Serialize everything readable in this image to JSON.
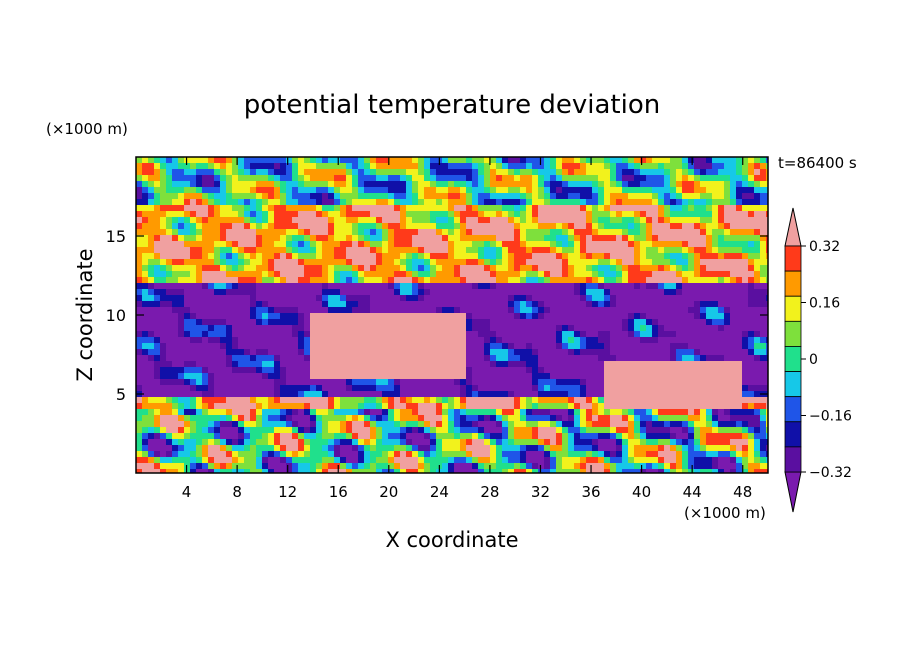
{
  "chart_data": {
    "type": "heatmap",
    "title": "potential temperature deviation",
    "xlabel": "X coordinate",
    "ylabel": "Z coordinate",
    "x_unit": "(×1000 m)",
    "y_unit": "(×1000 m)",
    "time_label": "t=86400 s",
    "xlim": [
      0,
      50
    ],
    "ylim": [
      0,
      20
    ],
    "x_ticks": [
      4,
      8,
      12,
      16,
      20,
      24,
      28,
      32,
      36,
      40,
      44,
      48
    ],
    "y_ticks": [
      5,
      10,
      15
    ],
    "colorbar": {
      "levels": [
        -0.4,
        -0.32,
        -0.24,
        -0.16,
        -0.08,
        0,
        0.08,
        0.16,
        0.24,
        0.32,
        0.4
      ],
      "tick_labels": [
        "0.32",
        "0.16",
        "0",
        "−0.16",
        "−0.32"
      ],
      "tick_values": [
        0.32,
        0.16,
        0,
        -0.16,
        -0.32
      ],
      "colors": [
        "#7a1aae",
        "#5a0fa0",
        "#1010a8",
        "#1f55e8",
        "#16c8e8",
        "#20e08c",
        "#7ee03c",
        "#f2f21c",
        "#ff9a00",
        "#ff3a1a",
        "#f0a0a0"
      ],
      "extend": "both"
    },
    "bands": [
      {
        "z": [
          0,
          4
        ],
        "desc_value": 0.05
      },
      {
        "z": [
          4,
          5
        ],
        "desc_value": 0.3
      },
      {
        "z": [
          5,
          9
        ],
        "desc_value": -0.35
      },
      {
        "z": [
          9,
          12
        ],
        "desc_value": -0.38
      },
      {
        "z": [
          12,
          17
        ],
        "desc_value": 0.28
      },
      {
        "z": [
          17,
          20
        ],
        "desc_value": 0.05
      }
    ]
  }
}
